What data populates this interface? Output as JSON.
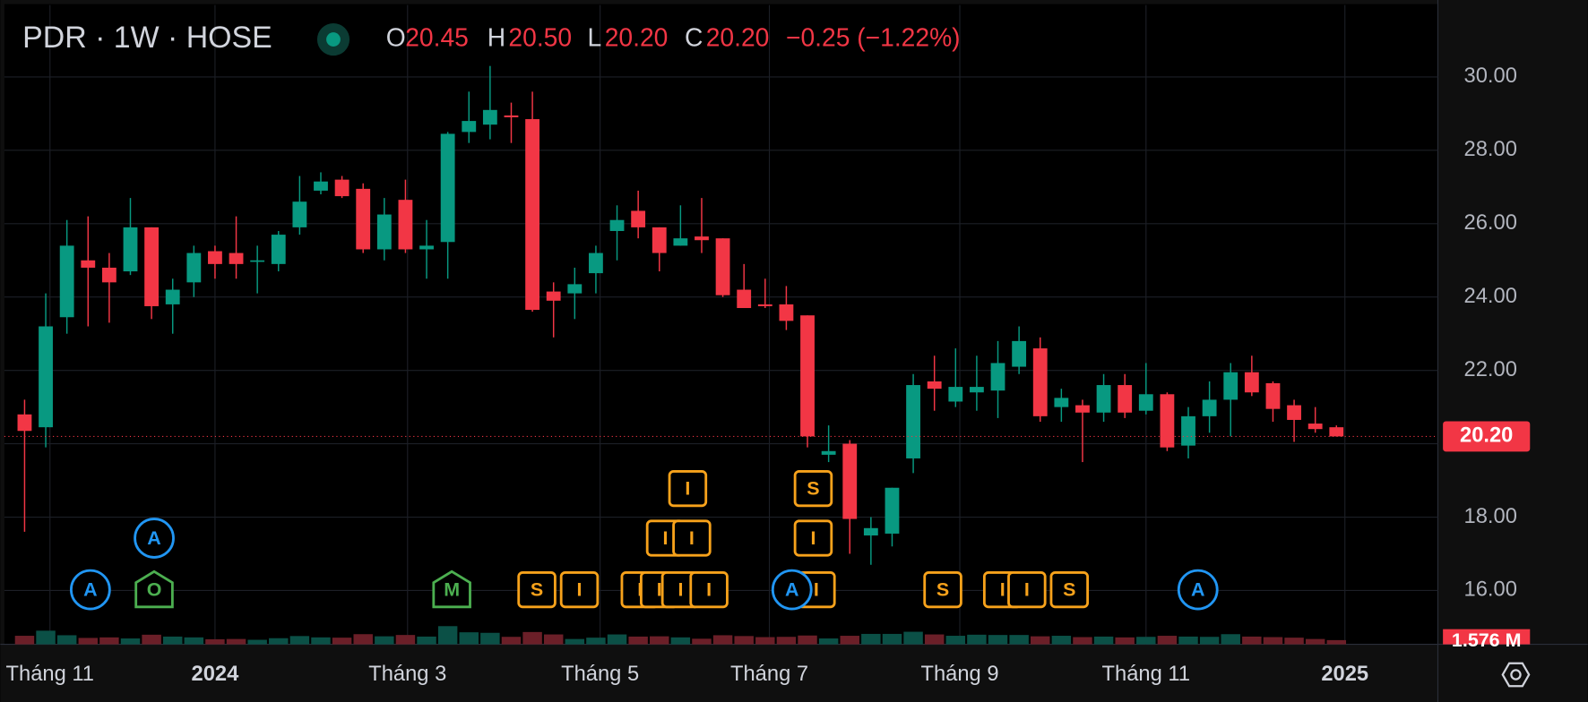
{
  "chart_data": {
    "type": "candlestick",
    "header": {
      "symbol": "PDR · 1W · HOSE",
      "open_key": "O",
      "open": "20.45",
      "high_key": "H",
      "high": "20.50",
      "low_key": "L",
      "low": "20.20",
      "close_key": "C",
      "close": "20.20",
      "change": "−0.25 (−1.22%)"
    },
    "open": [
      20.8,
      20.45,
      23.45,
      25.0,
      24.8,
      24.7,
      25.9,
      23.8,
      24.4,
      25.25,
      25.2,
      25.0,
      24.9,
      25.9,
      26.9,
      27.2,
      26.95,
      25.3,
      26.65,
      25.3,
      25.5,
      28.5,
      28.7,
      28.95,
      28.85,
      24.15,
      24.1,
      24.65,
      25.8,
      26.35,
      25.9,
      25.4,
      25.65,
      25.6,
      24.2,
      23.8,
      23.8,
      23.5,
      19.7,
      20.0,
      17.5,
      17.55,
      19.6,
      21.7,
      21.15,
      21.4,
      21.45,
      22.1,
      22.6,
      21.0,
      21.05,
      20.85,
      21.6,
      20.9,
      21.35,
      19.95,
      20.75,
      21.2,
      21.95,
      21.65,
      21.05,
      20.55,
      20.45
    ],
    "high": [
      21.2,
      24.1,
      26.1,
      26.2,
      25.2,
      26.7,
      25.9,
      24.5,
      25.4,
      25.4,
      26.2,
      25.4,
      25.8,
      27.3,
      27.4,
      27.3,
      27.1,
      26.7,
      27.2,
      26.1,
      28.5,
      29.6,
      30.3,
      29.3,
      29.6,
      24.4,
      24.8,
      25.4,
      26.5,
      26.9,
      25.9,
      26.5,
      26.7,
      25.6,
      24.9,
      24.5,
      24.3,
      23.5,
      20.5,
      20.1,
      18.0,
      18.8,
      21.9,
      22.4,
      22.6,
      22.4,
      22.8,
      23.2,
      22.9,
      21.5,
      21.2,
      21.9,
      21.9,
      22.2,
      21.4,
      21.0,
      21.7,
      22.2,
      22.4,
      21.7,
      21.2,
      21.0,
      20.5
    ],
    "low": [
      17.6,
      19.9,
      23.0,
      23.2,
      23.3,
      24.6,
      23.4,
      23.0,
      24.0,
      24.5,
      24.5,
      24.1,
      24.7,
      25.7,
      26.8,
      26.7,
      25.2,
      25.0,
      25.2,
      24.5,
      24.5,
      28.2,
      28.3,
      28.2,
      23.6,
      22.9,
      23.4,
      24.1,
      25.0,
      25.6,
      24.7,
      25.4,
      25.2,
      24.0,
      23.7,
      23.7,
      23.1,
      19.9,
      19.5,
      17.0,
      16.7,
      17.2,
      19.2,
      20.9,
      21.0,
      20.9,
      20.7,
      21.9,
      20.6,
      20.6,
      19.5,
      20.6,
      20.7,
      20.8,
      19.8,
      19.6,
      20.3,
      20.2,
      21.3,
      20.6,
      20.05,
      20.3,
      20.2
    ],
    "close": [
      20.35,
      23.2,
      25.4,
      24.8,
      24.4,
      25.9,
      23.75,
      24.2,
      25.2,
      24.9,
      24.9,
      25.0,
      25.7,
      26.6,
      27.15,
      26.75,
      25.3,
      26.25,
      25.3,
      25.4,
      28.45,
      28.8,
      29.1,
      28.9,
      23.65,
      23.9,
      24.35,
      25.2,
      26.1,
      25.9,
      25.2,
      25.6,
      25.55,
      24.05,
      23.7,
      23.75,
      23.35,
      20.2,
      19.8,
      17.95,
      17.7,
      18.8,
      21.6,
      21.5,
      21.55,
      21.55,
      22.2,
      22.8,
      20.75,
      21.25,
      20.85,
      21.6,
      20.85,
      21.35,
      19.9,
      20.75,
      21.2,
      21.95,
      21.4,
      20.95,
      20.65,
      20.4,
      20.2
    ],
    "volume": [
      3.2,
      5.1,
      3.4,
      2.4,
      2.6,
      2.2,
      3.6,
      2.9,
      2.6,
      1.9,
      2.0,
      1.7,
      2.3,
      3.1,
      2.6,
      2.5,
      3.8,
      3.0,
      3.5,
      2.9,
      6.8,
      4.5,
      4.3,
      2.8,
      4.6,
      3.7,
      2.0,
      2.5,
      3.7,
      2.9,
      3.0,
      2.6,
      2.1,
      3.4,
      3.1,
      2.7,
      2.8,
      3.3,
      2.2,
      3.2,
      3.9,
      3.9,
      4.7,
      3.7,
      3.2,
      3.6,
      3.5,
      3.5,
      3.0,
      3.2,
      2.7,
      2.9,
      2.6,
      2.8,
      3.2,
      2.9,
      2.8,
      3.8,
      2.9,
      2.7,
      2.5,
      2.0,
      1.576
    ],
    "volume_label": "1.576 M",
    "up_color": "#089981",
    "down_color": "#f23645",
    "ylim": [
      15,
      31.96
    ],
    "yticks": [
      {
        "value": 16,
        "label": "16.00"
      },
      {
        "value": 18,
        "label": "18.00"
      },
      {
        "value": 20,
        "label": "20.00"
      },
      {
        "value": 22,
        "label": "22.00"
      },
      {
        "value": 24,
        "label": "24.00"
      },
      {
        "value": 26,
        "label": "26.00"
      },
      {
        "value": 28,
        "label": "28.00"
      },
      {
        "value": 30,
        "label": "30.00"
      }
    ],
    "xticks": [
      {
        "value": 1.2,
        "label": "Tháng 11"
      },
      {
        "value": 9,
        "label": "2024"
      },
      {
        "value": 18.1,
        "label": "Tháng 3"
      },
      {
        "value": 27.2,
        "label": "Tháng 5"
      },
      {
        "value": 35.2,
        "label": "Tháng 7"
      },
      {
        "value": 44.2,
        "label": "Tháng 9"
      },
      {
        "value": 53,
        "label": "Tháng 11"
      },
      {
        "value": 62.4,
        "label": "2025"
      }
    ],
    "last_price": {
      "value": 20.2,
      "label": "20.20"
    },
    "grid": true,
    "markers": [
      "A",
      "A",
      "O",
      "M",
      "S",
      "I",
      "I",
      "I",
      "I",
      "I",
      "I",
      "I",
      "I",
      "I",
      "A",
      "I",
      "S",
      "S",
      "I",
      "I",
      "S",
      "A"
    ]
  }
}
